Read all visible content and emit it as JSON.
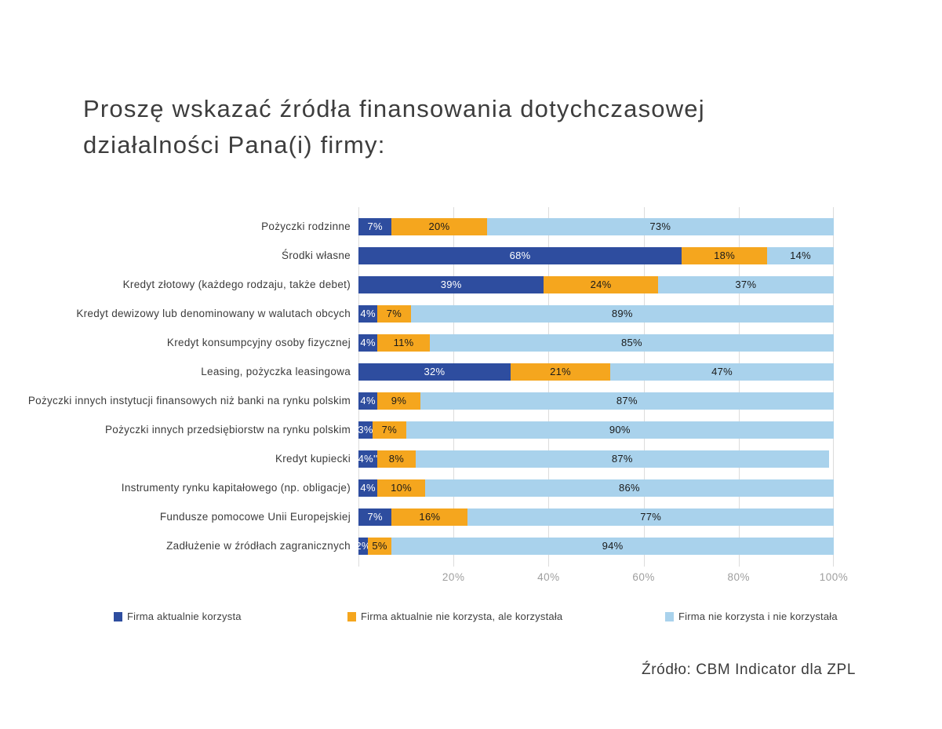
{
  "header": {
    "line1": "Proszę wskazać źródła finansowania dotychczasowej",
    "line2": "działalności Pana(i) firmy:"
  },
  "footer": {
    "source": "Źródło: CBM Indicator dla ZPL"
  },
  "colors": {
    "series_current": "#2E4D9F",
    "series_past": "#F5A61E",
    "series_never": "#A9D2EC",
    "grid": "#DCDCDC",
    "axis_text": "#9E9E9E",
    "label_text": "#3B3B3B",
    "value_text_dark": "#1A1A1A",
    "value_text_light": "#FFFFFF"
  },
  "legend": {
    "items": [
      {
        "label": "Firma aktualnie korzysta",
        "color": "#2E4D9F"
      },
      {
        "label": "Firma aktualnie nie korzysta, ale korzystała",
        "color": "#F5A61E"
      },
      {
        "label": "Firma nie korzysta i nie korzystała",
        "color": "#A9D2EC"
      }
    ]
  },
  "chart_data": {
    "type": "bar",
    "orientation": "horizontal",
    "stacked": true,
    "title": "Proszę wskazać źródła finansowania dotychczasowej działalności Pana(i) firmy:",
    "xlim": [
      0,
      100
    ],
    "x_tick_values": [
      20,
      40,
      60,
      80,
      100
    ],
    "x_tick_labels": [
      "20%",
      "40%",
      "60%",
      "80%",
      "100%"
    ],
    "grid": true,
    "legend_position": "bottom",
    "categories": [
      "Pożyczki rodzinne",
      "Środki własne",
      "Kredyt złotowy (każdego rodzaju, także debet)",
      "Kredyt dewizowy lub denominowany w walutach obcych",
      "Kredyt konsumpcyjny osoby fizycznej",
      "Leasing, pożyczka leasingowa",
      "Pożyczki innych instytucji finansowych niż banki na rynku polskim",
      "Pożyczki innych przedsiębiorstw na rynku polskim",
      "Kredyt kupiecki",
      "Instrumenty rynku kapitałowego (np. obligacje)",
      "Fundusze pomocowe Unii Europejskiej",
      "Zadłużenie w źródłach zagranicznych"
    ],
    "series": [
      {
        "name": "Firma aktualnie korzysta",
        "color": "#2E4D9F",
        "text_color": "#FFFFFF",
        "values": [
          7,
          68,
          39,
          4,
          4,
          32,
          4,
          3,
          4,
          4,
          7,
          2
        ],
        "labels": [
          "7%",
          "68%",
          "39%",
          "4%",
          "4%",
          "32%",
          "4%",
          "3%",
          "4%''",
          "4%",
          "7%",
          "2%"
        ]
      },
      {
        "name": "Firma aktualnie nie korzysta, ale korzystała",
        "color": "#F5A61E",
        "text_color": "#1A1A1A",
        "values": [
          20,
          18,
          24,
          7,
          11,
          21,
          9,
          7,
          8,
          10,
          16,
          5
        ],
        "labels": [
          "20%",
          "18%",
          "24%",
          "7%",
          "11%",
          "21%",
          "9%",
          "7%",
          "8%",
          "10%",
          "16%",
          "5%"
        ]
      },
      {
        "name": "Firma nie korzysta i nie korzystała",
        "color": "#A9D2EC",
        "text_color": "#1A1A1A",
        "values": [
          73,
          14,
          37,
          89,
          85,
          47,
          87,
          90,
          87,
          86,
          77,
          94
        ],
        "labels": [
          "73%",
          "14%",
          "37%",
          "89%",
          "85%",
          "47%",
          "87%",
          "90%",
          "87%",
          "86%",
          "77%",
          "94%"
        ]
      }
    ]
  }
}
